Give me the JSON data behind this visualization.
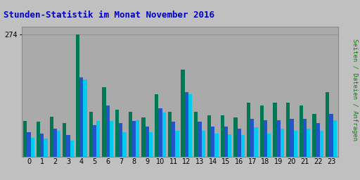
{
  "title": "Stunden-Statistik im Monat November 2016",
  "ylabel_right": "Seiten / Dateien / Anfragen",
  "hours": [
    0,
    1,
    2,
    3,
    4,
    5,
    6,
    7,
    8,
    9,
    10,
    11,
    12,
    13,
    14,
    15,
    16,
    17,
    18,
    19,
    20,
    21,
    22,
    23
  ],
  "seiten": [
    80,
    78,
    90,
    75,
    274,
    100,
    155,
    105,
    100,
    88,
    140,
    100,
    195,
    100,
    92,
    92,
    88,
    120,
    115,
    120,
    120,
    115,
    95,
    145
  ],
  "dateien": [
    55,
    52,
    62,
    48,
    178,
    70,
    115,
    75,
    80,
    68,
    108,
    78,
    145,
    78,
    68,
    68,
    62,
    85,
    82,
    82,
    85,
    85,
    75,
    95
  ],
  "anfragen": [
    42,
    40,
    58,
    36,
    172,
    80,
    80,
    55,
    82,
    55,
    98,
    58,
    140,
    58,
    52,
    50,
    48,
    65,
    52,
    62,
    58,
    62,
    58,
    82
  ],
  "color_seiten": "#007755",
  "color_dateien": "#2255cc",
  "color_anfragen": "#00ccee",
  "bg_color": "#c0c0c0",
  "plot_bg": "#aaaaaa",
  "title_color": "#0000cc",
  "ylabel_right_color": "#008800",
  "ylabel_right_color2": "#0000aa",
  "ymax": 290,
  "ytick": 274
}
